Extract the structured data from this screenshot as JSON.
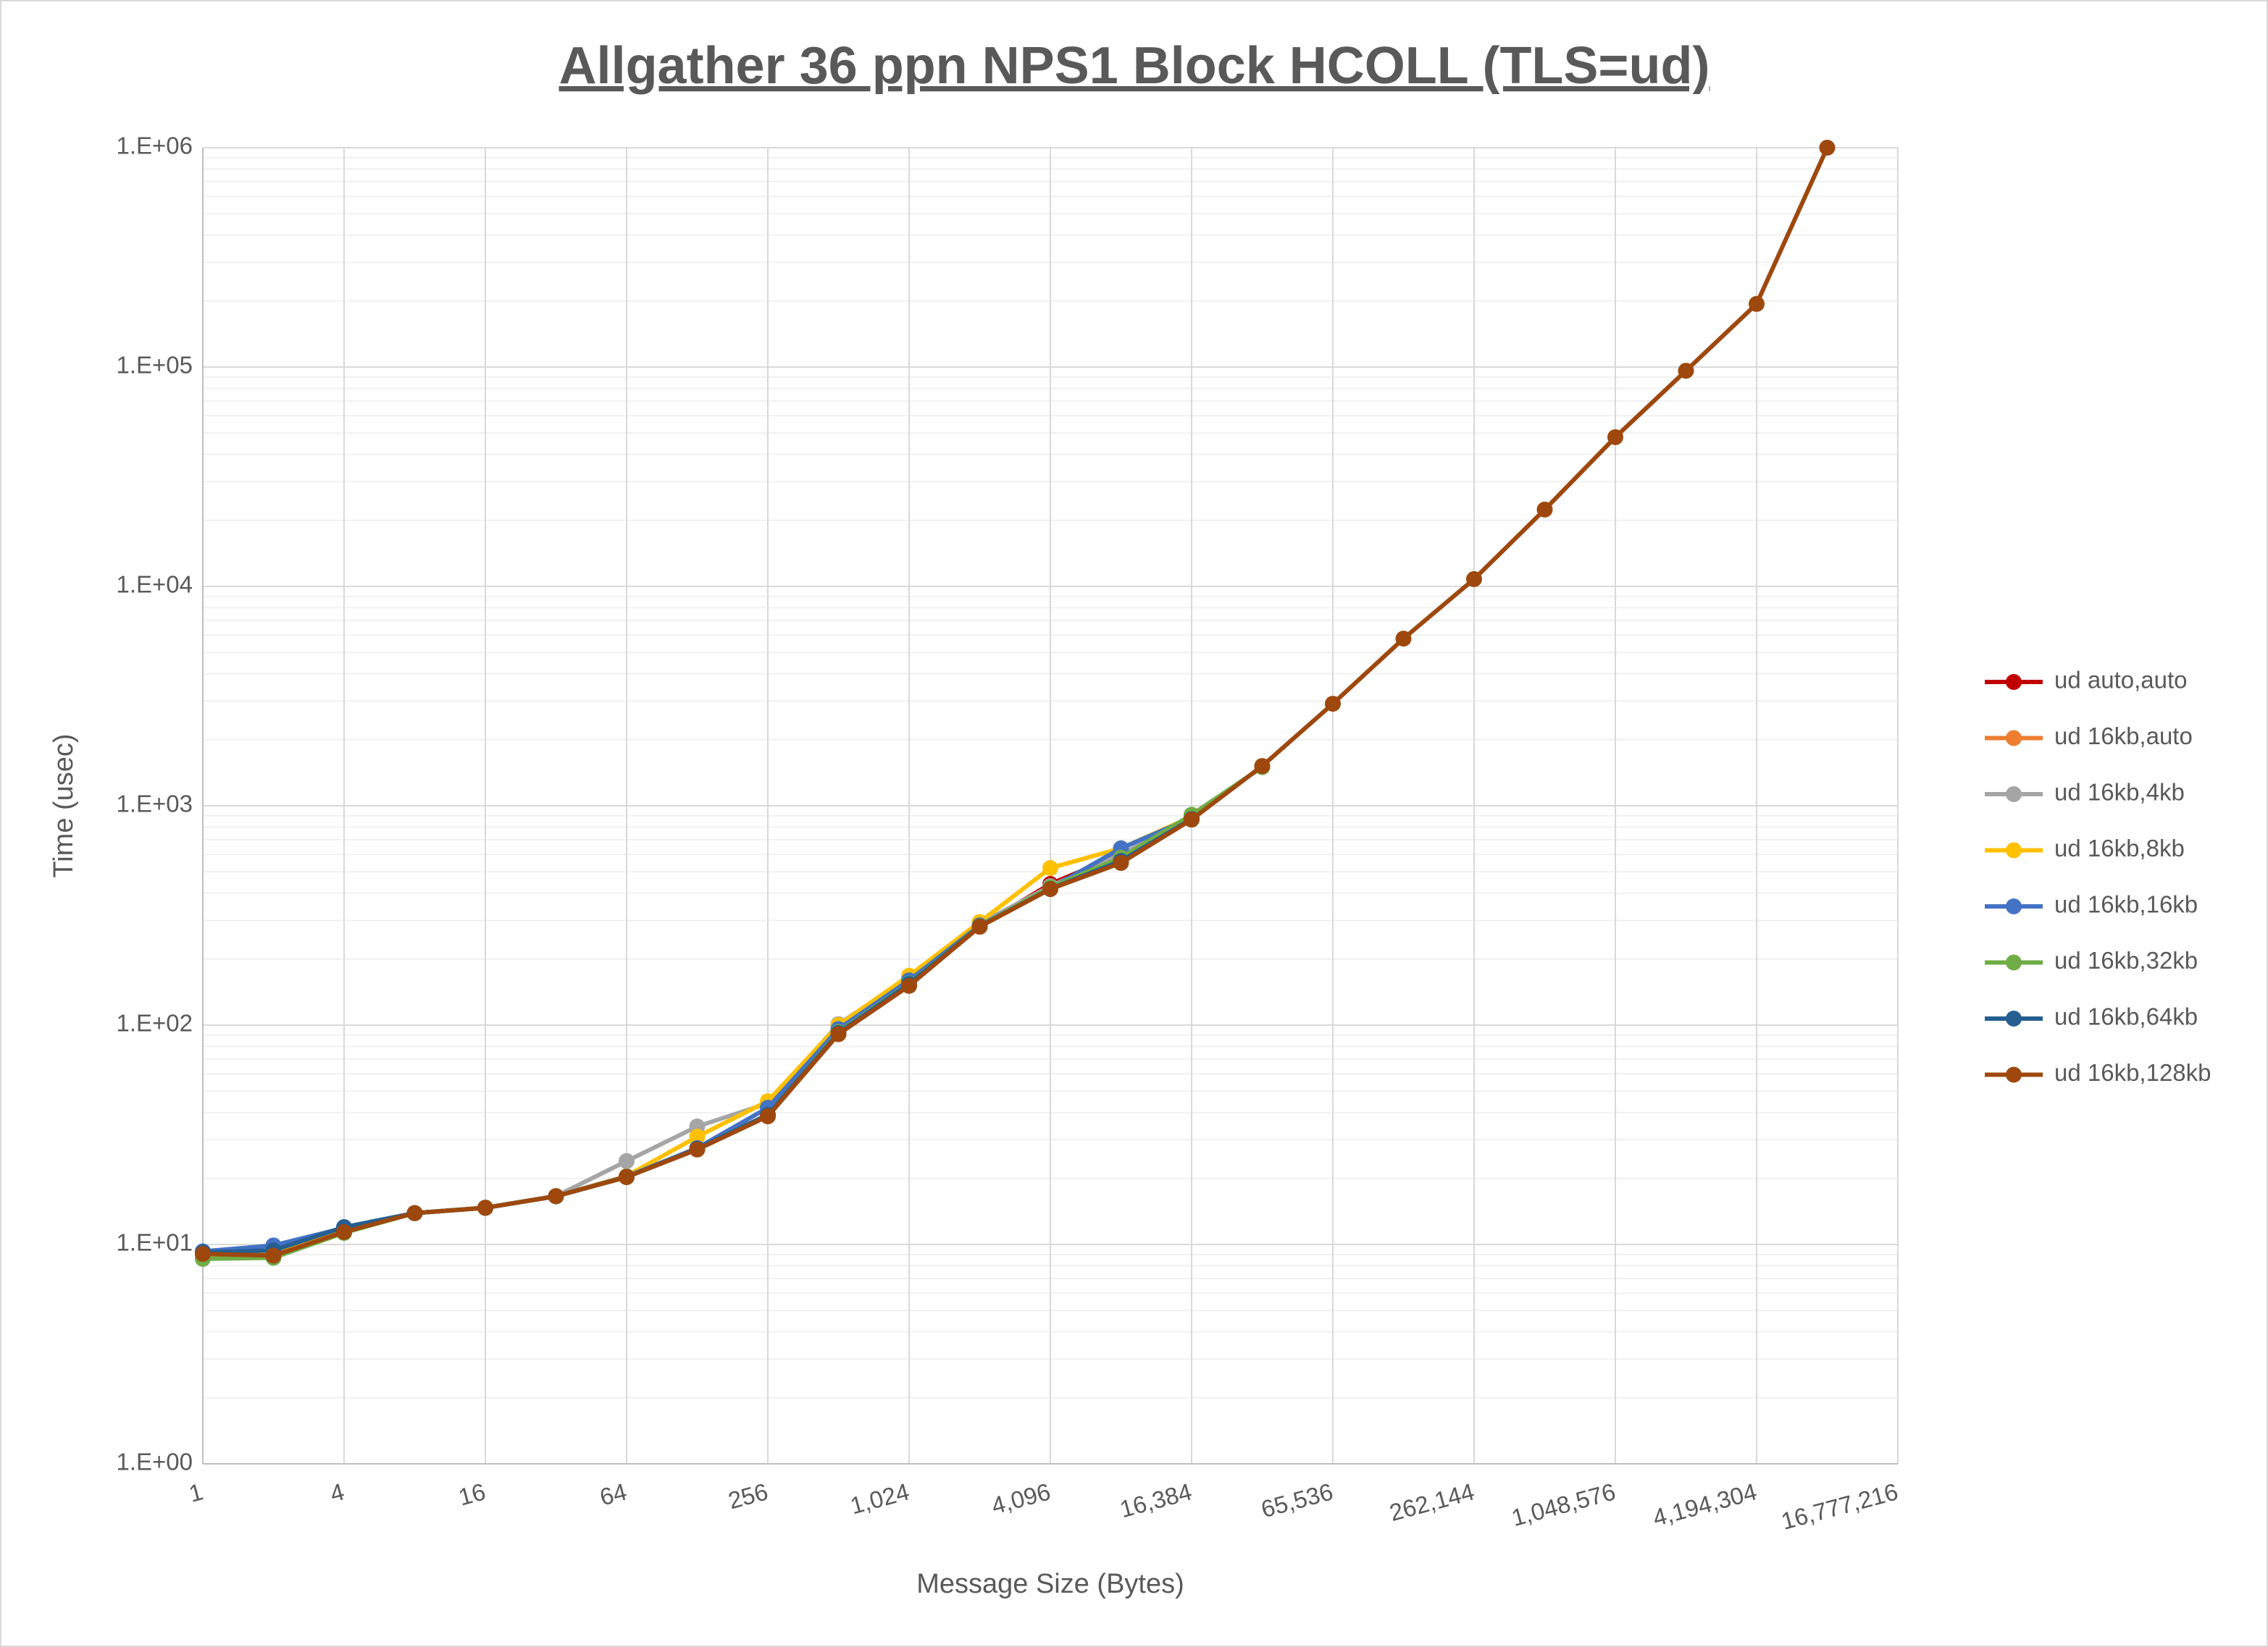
{
  "chart_data": {
    "type": "line",
    "title": "Allgather 36 ppn NPS1 Block HCOLL (TLS=ud)",
    "x_label": "Message Size (Bytes)",
    "y_label": "Time (usec)",
    "x_log": true,
    "y_log": true,
    "grid": true,
    "legend": "right",
    "x": [
      1,
      2,
      4,
      8,
      16,
      32,
      64,
      128,
      256,
      512,
      1024,
      2048,
      4096,
      8192,
      16384,
      32768,
      65536,
      131072,
      262144,
      524288,
      1048576,
      2097152,
      4194304,
      8388608
    ],
    "xlim": [
      1,
      16777216
    ],
    "xticks": [
      1,
      4,
      16,
      64,
      256,
      {
        "value": 1024,
        "label": "1,024"
      },
      {
        "value": 4096,
        "label": "4,096"
      },
      {
        "value": 16384,
        "label": "16,384"
      },
      {
        "value": 65536,
        "label": "65,536"
      },
      {
        "value": 262144,
        "label": "262,144"
      },
      {
        "value": 1048576,
        "label": "1,048,576"
      },
      {
        "value": 4194304,
        "label": "4,194,304"
      },
      {
        "value": 16777216,
        "label": "16,777,216"
      }
    ],
    "ylim": [
      1,
      1000000
    ],
    "yticks": [
      {
        "value": 1,
        "label": "1.E+00"
      },
      {
        "value": 10,
        "label": "1.E+01"
      },
      {
        "value": 100,
        "label": "1.E+02"
      },
      {
        "value": 1000,
        "label": "1.E+03"
      },
      {
        "value": 10000,
        "label": "1.E+04"
      },
      {
        "value": 100000,
        "label": "1.E+05"
      },
      {
        "value": 1000000,
        "label": "1.E+06"
      }
    ],
    "series": [
      {
        "name": "ud auto,auto",
        "color": "#c00000",
        "values": [
          9.0,
          9.0,
          11.5,
          13.9,
          14.7,
          16.6,
          20.3,
          27.5,
          39,
          92,
          153,
          282,
          440,
          600,
          880,
          null,
          null,
          null,
          null,
          null,
          null,
          null,
          null,
          null
        ]
      },
      {
        "name": "ud 16kb,auto",
        "color": "#ed7d31",
        "values": [
          9.0,
          9.0,
          11.4,
          13.9,
          14.7,
          16.6,
          20.3,
          27.2,
          38.5,
          91,
          152,
          281,
          420,
          560,
          870,
          null,
          null,
          null,
          null,
          null,
          null,
          null,
          null,
          null
        ]
      },
      {
        "name": "ud 16kb,4kb",
        "color": "#a5a5a5",
        "values": [
          9.1,
          9.2,
          11.6,
          13.9,
          14.7,
          16.6,
          24,
          34.5,
          44,
          101,
          165,
          290,
          430,
          600,
          880,
          null,
          null,
          null,
          null,
          null,
          null,
          null,
          null,
          null
        ]
      },
      {
        "name": "ud 16kb,8kb",
        "color": "#ffc000",
        "values": [
          9.0,
          9.1,
          11.5,
          13.9,
          14.7,
          16.6,
          20.5,
          31,
          45,
          100,
          168,
          295,
          520,
          640,
          890,
          null,
          null,
          null,
          null,
          null,
          null,
          null,
          null,
          null
        ]
      },
      {
        "name": "ud 16kb,16kb",
        "color": "#4472c4",
        "values": [
          9.3,
          9.9,
          11.9,
          13.9,
          14.7,
          16.6,
          20.4,
          27.5,
          42,
          96,
          160,
          285,
          420,
          640,
          880,
          null,
          null,
          null,
          null,
          null,
          null,
          null,
          null,
          null
        ]
      },
      {
        "name": "ud 16kb,32kb",
        "color": "#70ad47",
        "values": [
          8.6,
          8.7,
          11.3,
          13.9,
          14.7,
          16.6,
          20.3,
          27.3,
          39,
          93,
          155,
          283,
          425,
          580,
          910,
          1500,
          null,
          null,
          null,
          null,
          null,
          null,
          null,
          null
        ]
      },
      {
        "name": "ud 16kb,64kb",
        "color": "#255e91",
        "values": [
          9.2,
          9.4,
          12,
          13.9,
          14.7,
          16.6,
          20.3,
          27.3,
          39,
          92,
          154,
          282,
          418,
          560,
          870,
          null,
          null,
          null,
          null,
          null,
          null,
          null,
          null,
          null
        ]
      },
      {
        "name": "ud 16kb,128kb",
        "color": "#9e480e",
        "values": [
          9.06,
          8.9,
          11.4,
          13.9,
          14.7,
          16.6,
          20.3,
          27.1,
          38.4,
          91,
          151,
          281,
          417,
          549,
          865,
          1518,
          2918,
          5780,
          10800,
          22400,
          47900,
          96200,
          194000,
          1000000
        ]
      }
    ]
  }
}
